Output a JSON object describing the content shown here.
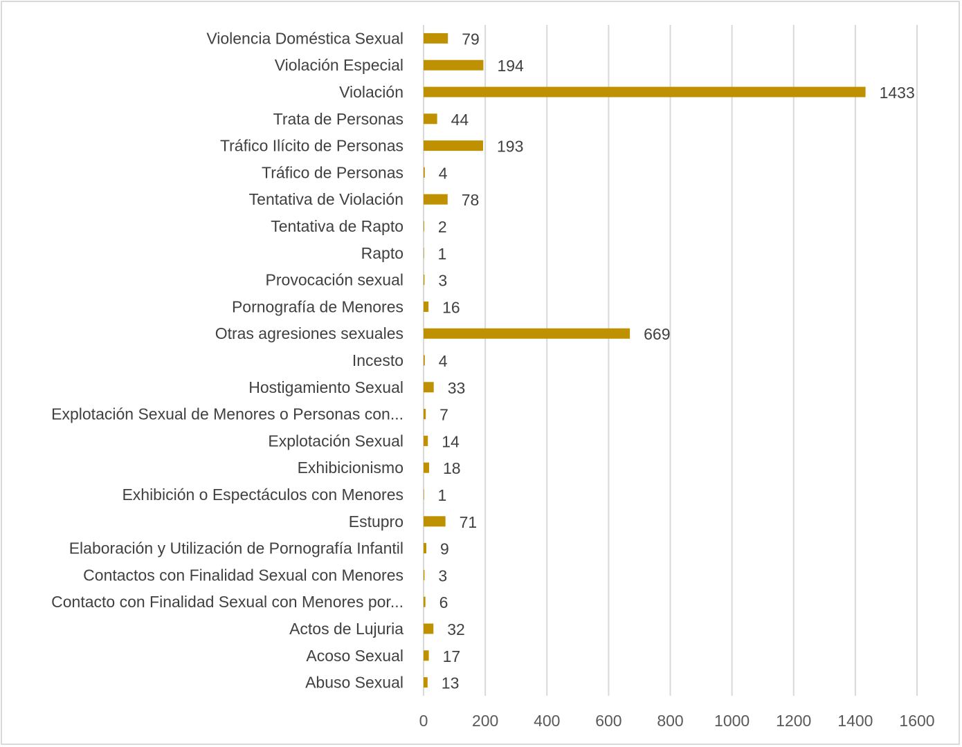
{
  "chart_data": {
    "type": "bar",
    "orientation": "horizontal",
    "title": "",
    "xlabel": "",
    "ylabel": "",
    "xlim": [
      0,
      1600
    ],
    "xticks": [
      0,
      200,
      400,
      600,
      800,
      1000,
      1200,
      1400,
      1600
    ],
    "grid": true,
    "legend": "none",
    "bar_color": "#BF9000",
    "categories": [
      "Violencia Doméstica Sexual",
      "Violación Especial",
      "Violación",
      "Trata de Personas",
      "Tráfico Ilícito de Personas",
      "Tráfico de Personas",
      "Tentativa de Violación",
      "Tentativa de Rapto",
      "Rapto",
      "Provocación sexual",
      "Pornografía de Menores",
      "Otras agresiones sexuales",
      "Incesto",
      "Hostigamiento Sexual",
      "Explotación Sexual de Menores o Personas con...",
      "Explotación Sexual",
      "Exhibicionismo",
      "Exhibición o Espectáculos con Menores",
      "Estupro",
      "Elaboración y Utilización de Pornografía Infantil",
      "Contactos con Finalidad Sexual con Menores",
      "Contacto con Finalidad Sexual con Menores por...",
      "Actos de Lujuria",
      "Acoso Sexual",
      "Abuso Sexual"
    ],
    "values": [
      79,
      194,
      1433,
      44,
      193,
      4,
      78,
      2,
      1,
      3,
      16,
      669,
      4,
      33,
      7,
      14,
      18,
      1,
      71,
      9,
      3,
      6,
      32,
      17,
      13
    ]
  }
}
